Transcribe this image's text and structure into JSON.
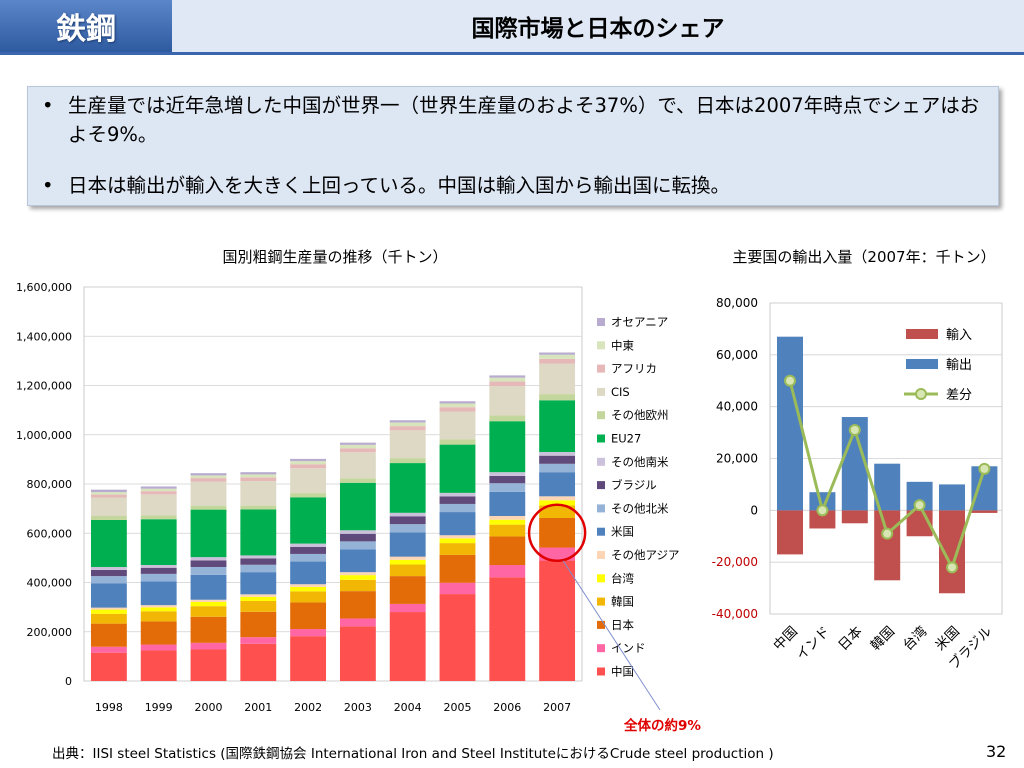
{
  "header": {
    "section": "鉄鋼",
    "title": "国際市場と日本のシェア"
  },
  "bullets": [
    "生産量では近年急増した中国が世界一（世界生産量のおよそ37%）で、日本は2007年時点でシェアはおよそ9%。",
    "日本は輸出が輸入を大きく上回っている。中国は輸入国から輸出国に転換。"
  ],
  "annotation": "全体の約9%",
  "source": "出典：IISI steel Statistics (国際鉄鋼協会 International Iron and Steel InstituteにおけるCrude steel production )",
  "page_number": "32",
  "colors": {
    "header_blue": "#3a66b0",
    "highlight_circle": "#e00000"
  },
  "chart_data": [
    {
      "type": "bar",
      "stacked": true,
      "title": "国別粗鋼生産量の推移（千トン）",
      "categories": [
        "1998",
        "1999",
        "2000",
        "2001",
        "2002",
        "2003",
        "2004",
        "2005",
        "2006",
        "2007"
      ],
      "ylim": [
        0,
        1600000
      ],
      "yticks": [
        "0",
        "200,000",
        "400,000",
        "600,000",
        "800,000",
        "1,000,000",
        "1,200,000",
        "1,400,000",
        "1,600,000"
      ],
      "grid": true,
      "legend_position": "right",
      "series": [
        {
          "name": "中国",
          "color": "#ff5050",
          "values": [
            115000,
            124000,
            128000,
            151000,
            182000,
            222000,
            280000,
            353000,
            421000,
            489000
          ]
        },
        {
          "name": "インド",
          "color": "#ff66a3",
          "values": [
            24000,
            24000,
            27000,
            27000,
            29000,
            32000,
            33000,
            46000,
            50000,
            53000
          ]
        },
        {
          "name": "日本",
          "color": "#e36c09",
          "values": [
            94000,
            94000,
            106000,
            103000,
            108000,
            111000,
            113000,
            113000,
            116000,
            120000
          ]
        },
        {
          "name": "韓国",
          "color": "#f2b705",
          "values": [
            40000,
            41000,
            43000,
            44000,
            45000,
            46000,
            47000,
            48000,
            48000,
            51000
          ]
        },
        {
          "name": "台湾",
          "color": "#ffff00",
          "values": [
            17000,
            16000,
            17000,
            17000,
            18000,
            19000,
            19000,
            19000,
            20000,
            21000
          ]
        },
        {
          "name": "その他アジア",
          "color": "#fcd5b4",
          "values": [
            8000,
            9000,
            9000,
            10000,
            11000,
            12000,
            13000,
            13000,
            15000,
            16000
          ]
        },
        {
          "name": "米国",
          "color": "#4f81bd",
          "values": [
            98000,
            97000,
            101000,
            90000,
            92000,
            93000,
            99000,
            94000,
            98000,
            98000
          ]
        },
        {
          "name": "その他北米",
          "color": "#95b3d7",
          "values": [
            30000,
            30000,
            32000,
            30000,
            31000,
            32000,
            33000,
            33000,
            35000,
            34000
          ]
        },
        {
          "name": "ブラジル",
          "color": "#604a7b",
          "values": [
            25000,
            25000,
            27000,
            26000,
            29000,
            31000,
            32000,
            31000,
            30000,
            33000
          ]
        },
        {
          "name": "その他南米",
          "color": "#ccc1da",
          "values": [
            12000,
            11000,
            13000,
            12000,
            13000,
            14000,
            14000,
            14000,
            15000,
            15000
          ]
        },
        {
          "name": "EU27",
          "color": "#00b050",
          "values": [
            191000,
            186000,
            193000,
            187000,
            188000,
            193000,
            202000,
            196000,
            207000,
            210000
          ]
        },
        {
          "name": "その他欧州",
          "color": "#c3d69b",
          "values": [
            16000,
            15000,
            16000,
            15000,
            17000,
            18000,
            20000,
            21000,
            23000,
            25000
          ]
        },
        {
          "name": "CIS",
          "color": "#ddd9c4",
          "values": [
            75000,
            86000,
            98000,
            100000,
            101000,
            106000,
            113000,
            113000,
            120000,
            124000
          ]
        },
        {
          "name": "アフリカ",
          "color": "#e6b9b8",
          "values": [
            12000,
            13000,
            14000,
            15000,
            16000,
            16000,
            17000,
            18000,
            18000,
            19000
          ]
        },
        {
          "name": "中東",
          "color": "#d7e4bc",
          "values": [
            10000,
            10000,
            11000,
            12000,
            13000,
            14000,
            15000,
            15000,
            16000,
            17000
          ]
        },
        {
          "name": "オセアニア",
          "color": "#b7abcf",
          "values": [
            10000,
            9000,
            9000,
            9000,
            9000,
            9000,
            9000,
            9000,
            9000,
            9000
          ]
        }
      ]
    },
    {
      "type": "bar",
      "title": "主要国の輸出入量（2007年：千トン）",
      "categories": [
        "中国",
        "インド",
        "日本",
        "韓国",
        "台湾",
        "米国",
        "ブラジル"
      ],
      "ylim": [
        -40000,
        80000
      ],
      "yticks": [
        "-40,000",
        "-20,000",
        "0",
        "20,000",
        "40,000",
        "60,000",
        "80,000"
      ],
      "grid": true,
      "legend_position": "right",
      "series": [
        {
          "name": "輸入",
          "color": "#c0504d",
          "values": [
            -17000,
            -7000,
            -5000,
            -27000,
            -10000,
            -32000,
            -1000
          ]
        },
        {
          "name": "輸出",
          "color": "#4f81bd",
          "values": [
            67000,
            7000,
            36000,
            18000,
            11000,
            10000,
            17000
          ]
        },
        {
          "name": "差分",
          "type": "line",
          "color": "#9bbb59",
          "values": [
            50000,
            0,
            31000,
            -9000,
            2000,
            -22000,
            16000
          ]
        }
      ]
    }
  ]
}
